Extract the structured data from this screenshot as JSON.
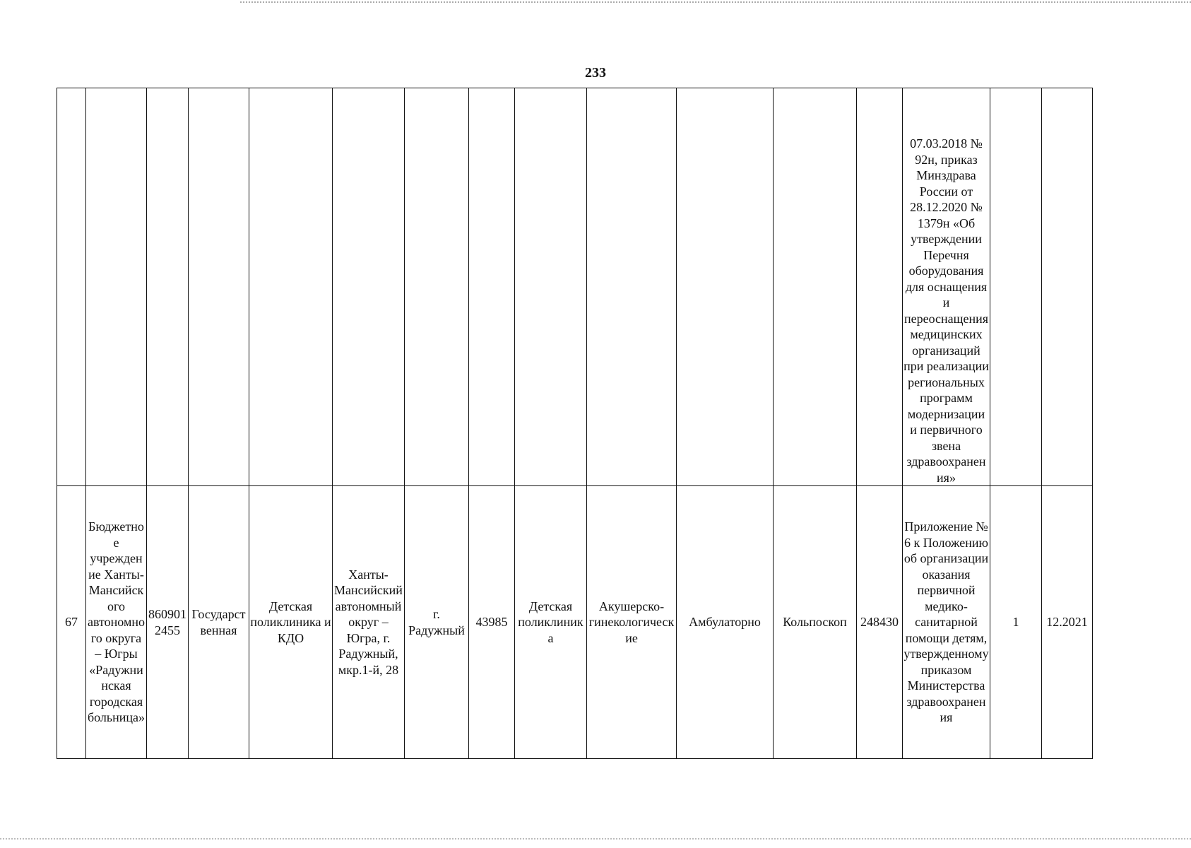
{
  "page_number": "233",
  "table": {
    "rows": [
      [
        null,
        null,
        null,
        null,
        null,
        null,
        null,
        null,
        null,
        null,
        null,
        null,
        null,
        "07.03.2018 № 92н, приказ Минздрава России от 28.12.2020 № 1379н «Об утверждении Перечня оборудования для оснащения и переоснащения медицинских организаций при реализации региональных программ модернизации и первичного звена здравоохранения»",
        null,
        null
      ],
      [
        "67",
        "Бюджетное учреждение Ханты-Мансийского автономного округа – Югры «Радужнинская городская больница»",
        "8609012455",
        "Государственная",
        "Детская поликлиника и КДО",
        "Ханты-Мансийский автономный округ – Югра, г. Радужный, мкр.1-й, 28",
        "г. Радужный",
        "43985",
        "Детская поликлиника",
        "Акушерско-гинекологические",
        "Амбулаторно",
        "Кольпоскоп",
        "248430",
        "Приложение № 6 к Положению об организации оказания первичной медико-санитарной помощи детям, утвержденному приказом Министерства здравоохранения",
        "1",
        "12.2021"
      ]
    ]
  }
}
